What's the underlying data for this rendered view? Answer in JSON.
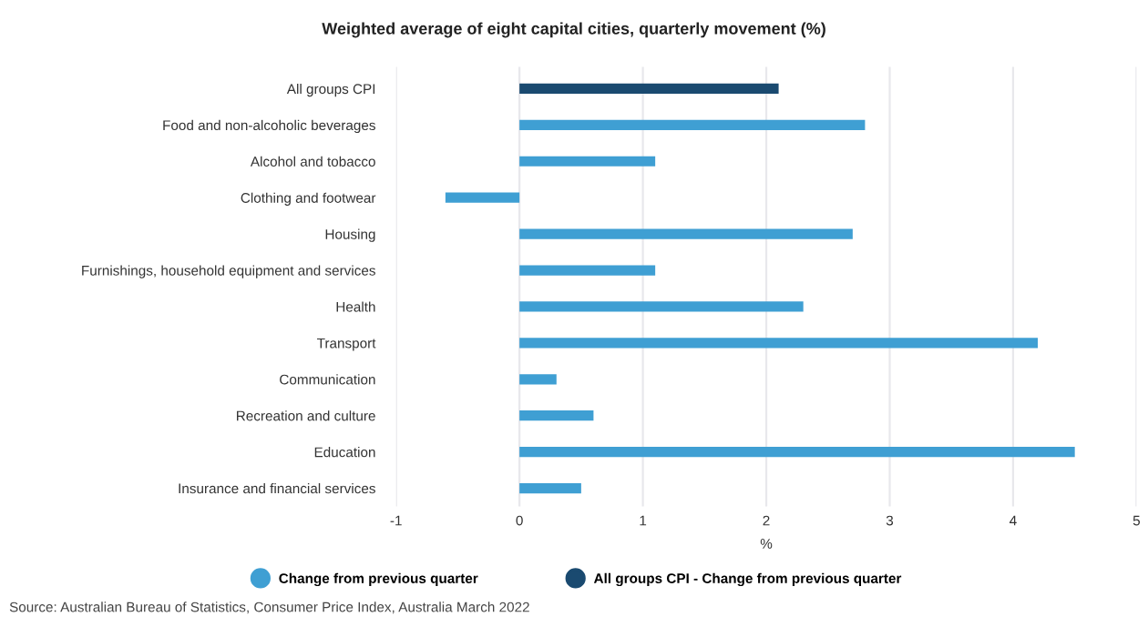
{
  "chart_data": {
    "type": "bar",
    "orientation": "horizontal",
    "title": "Weighted average of eight capital cities, quarterly movement (%)",
    "categories": [
      "All groups CPI",
      "Food and non-alcoholic beverages",
      "Alcohol and tobacco",
      "Clothing and footwear",
      "Housing",
      "Furnishings, household equipment and services",
      "Health",
      "Transport",
      "Communication",
      "Recreation and culture",
      "Education",
      "Insurance and financial services"
    ],
    "series": [
      {
        "name": "Change from previous quarter",
        "color": "#3f9fd3",
        "values": [
          null,
          2.8,
          1.1,
          -0.6,
          2.7,
          1.1,
          2.3,
          4.2,
          0.3,
          0.6,
          4.5,
          0.5
        ]
      },
      {
        "name": "All groups CPI - Change from previous quarter",
        "color": "#1a4a70",
        "values": [
          2.1,
          null,
          null,
          null,
          null,
          null,
          null,
          null,
          null,
          null,
          null,
          null
        ]
      }
    ],
    "xlabel": "%",
    "xlim": [
      -1,
      5
    ],
    "xticks": [
      -1,
      0,
      1,
      2,
      3,
      4,
      5
    ],
    "grid": "x",
    "legend": "bottom",
    "annotations": [
      "Source: Australian Bureau of Statistics, Consumer Price Index, Australia March 2022"
    ]
  }
}
